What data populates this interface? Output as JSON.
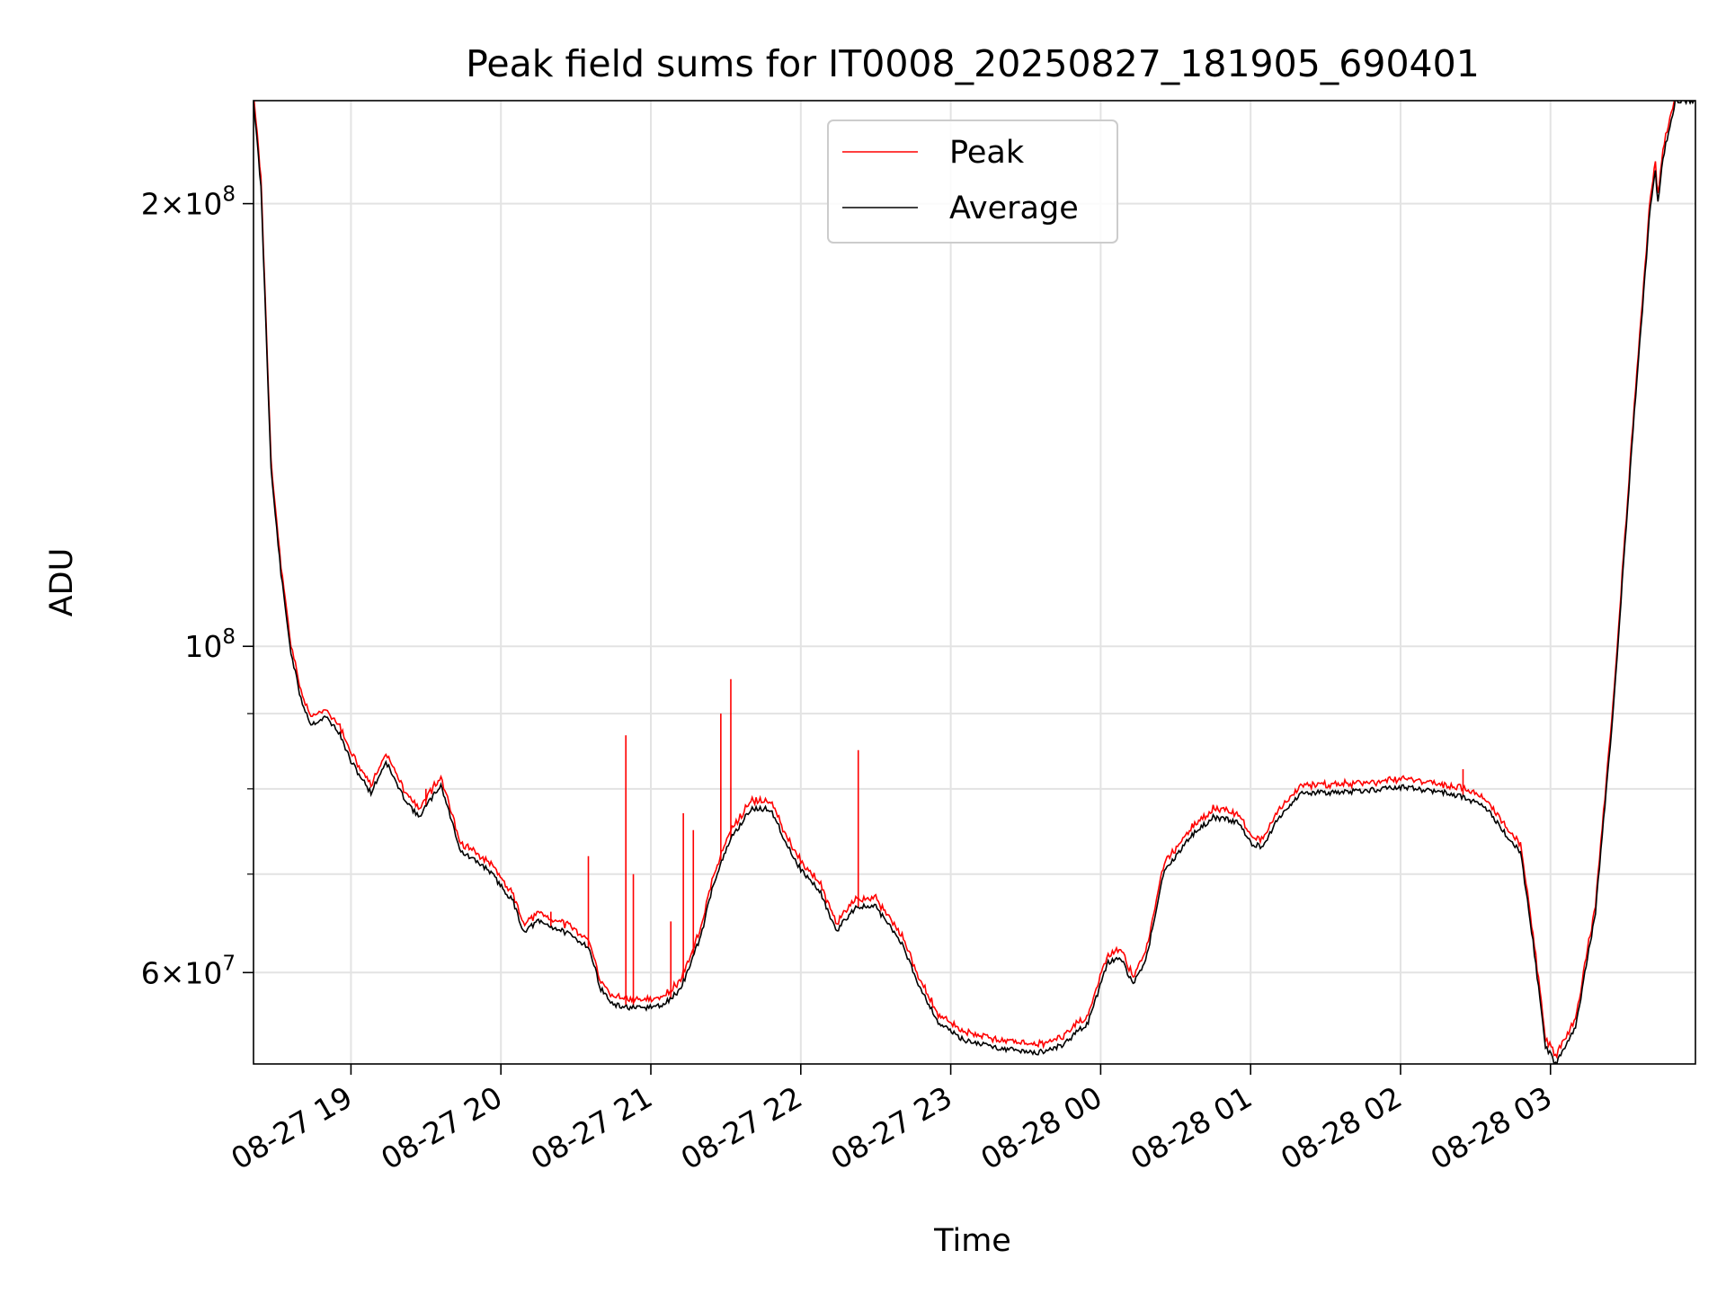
{
  "chart_data": {
    "type": "line",
    "title": "Peak field sums for IT0008_20250827_181905_690401",
    "xlabel": "Time",
    "ylabel": "ADU",
    "y_scale": "log",
    "ylim": [
      52000000,
      235000000
    ],
    "xlim": [
      "2025-08-27 18:21",
      "2025-08-28 03:58"
    ],
    "grid": true,
    "legend_position": "top-center",
    "x_ticks": [
      {
        "value": "2025-08-27 19:00",
        "label": "08-27 19"
      },
      {
        "value": "2025-08-27 20:00",
        "label": "08-27 20"
      },
      {
        "value": "2025-08-27 21:00",
        "label": "08-27 21"
      },
      {
        "value": "2025-08-27 22:00",
        "label": "08-27 22"
      },
      {
        "value": "2025-08-27 23:00",
        "label": "08-27 23"
      },
      {
        "value": "2025-08-28 00:00",
        "label": "08-28 00"
      },
      {
        "value": "2025-08-28 01:00",
        "label": "08-28 01"
      },
      {
        "value": "2025-08-28 02:00",
        "label": "08-28 02"
      },
      {
        "value": "2025-08-28 03:00",
        "label": "08-28 03"
      }
    ],
    "y_ticks": [
      {
        "value": 60000000,
        "base": "6",
        "exp": "7"
      },
      {
        "value": 100000000,
        "base": "",
        "exp": "8"
      },
      {
        "value": 200000000,
        "base": "2",
        "exp": "8"
      }
    ],
    "y_minor_ticks": [
      70000000,
      80000000,
      90000000
    ],
    "series": [
      {
        "name": "Average",
        "color": "#000000",
        "points": [
          [
            "2025-08-27 18:21",
            235000000
          ],
          [
            "2025-08-27 18:24",
            205000000
          ],
          [
            "2025-08-27 18:26",
            165000000
          ],
          [
            "2025-08-27 18:28",
            132000000
          ],
          [
            "2025-08-27 18:32",
            112000000
          ],
          [
            "2025-08-27 18:36",
            99000000
          ],
          [
            "2025-08-27 18:40",
            92000000
          ],
          [
            "2025-08-27 18:44",
            88500000
          ],
          [
            "2025-08-27 18:50",
            89500000
          ],
          [
            "2025-08-27 18:55",
            87500000
          ],
          [
            "2025-08-27 19:00",
            83500000
          ],
          [
            "2025-08-27 19:08",
            79500000
          ],
          [
            "2025-08-27 19:14",
            83500000
          ],
          [
            "2025-08-27 19:20",
            79500000
          ],
          [
            "2025-08-27 19:27",
            76500000
          ],
          [
            "2025-08-27 19:36",
            80500000
          ],
          [
            "2025-08-27 19:44",
            72500000
          ],
          [
            "2025-08-27 19:55",
            70500000
          ],
          [
            "2025-08-27 20:05",
            67000000
          ],
          [
            "2025-08-27 20:09",
            64000000
          ],
          [
            "2025-08-27 20:15",
            65000000
          ],
          [
            "2025-08-27 20:25",
            64000000
          ],
          [
            "2025-08-27 20:35",
            62500000
          ],
          [
            "2025-08-27 20:40",
            58500000
          ],
          [
            "2025-08-27 20:45",
            57000000
          ],
          [
            "2025-08-27 20:55",
            56700000
          ],
          [
            "2025-08-27 21:05",
            57000000
          ],
          [
            "2025-08-27 21:12",
            58500000
          ],
          [
            "2025-08-27 21:20",
            63500000
          ],
          [
            "2025-08-27 21:25",
            69000000
          ],
          [
            "2025-08-27 21:32",
            74000000
          ],
          [
            "2025-08-27 21:40",
            77500000
          ],
          [
            "2025-08-27 21:48",
            77500000
          ],
          [
            "2025-08-27 21:55",
            73000000
          ],
          [
            "2025-08-27 22:00",
            70500000
          ],
          [
            "2025-08-27 22:08",
            68000000
          ],
          [
            "2025-08-27 22:14",
            64000000
          ],
          [
            "2025-08-27 22:22",
            66500000
          ],
          [
            "2025-08-27 22:30",
            66500000
          ],
          [
            "2025-08-27 22:40",
            63000000
          ],
          [
            "2025-08-27 22:47",
            59000000
          ],
          [
            "2025-08-27 22:55",
            55500000
          ],
          [
            "2025-08-27 23:05",
            54000000
          ],
          [
            "2025-08-27 23:20",
            53300000
          ],
          [
            "2025-08-27 23:35",
            52900000
          ],
          [
            "2025-08-27 23:45",
            53600000
          ],
          [
            "2025-08-27 23:55",
            55500000
          ],
          [
            "2025-08-28 00:03",
            61000000
          ],
          [
            "2025-08-28 00:08",
            61300000
          ],
          [
            "2025-08-28 00:13",
            59000000
          ],
          [
            "2025-08-28 00:18",
            61000000
          ],
          [
            "2025-08-28 00:25",
            70000000
          ],
          [
            "2025-08-28 00:35",
            74000000
          ],
          [
            "2025-08-28 00:45",
            76500000
          ],
          [
            "2025-08-28 00:55",
            76000000
          ],
          [
            "2025-08-28 01:00",
            73500000
          ],
          [
            "2025-08-28 01:05",
            73000000
          ],
          [
            "2025-08-28 01:10",
            76000000
          ],
          [
            "2025-08-28 01:20",
            79500000
          ],
          [
            "2025-08-28 01:35",
            79500000
          ],
          [
            "2025-08-28 02:00",
            80200000
          ],
          [
            "2025-08-28 02:15",
            79700000
          ],
          [
            "2025-08-28 02:25",
            79000000
          ],
          [
            "2025-08-28 02:35",
            77500000
          ],
          [
            "2025-08-28 02:42",
            74500000
          ],
          [
            "2025-08-28 02:48",
            72500000
          ],
          [
            "2025-08-28 02:53",
            63000000
          ],
          [
            "2025-08-28 02:58",
            53500000
          ],
          [
            "2025-08-28 03:02",
            52000000
          ],
          [
            "2025-08-28 03:10",
            55000000
          ],
          [
            "2025-08-28 03:18",
            66000000
          ],
          [
            "2025-08-28 03:25",
            90000000
          ],
          [
            "2025-08-28 03:33",
            140000000
          ],
          [
            "2025-08-28 03:40",
            200000000
          ],
          [
            "2025-08-28 03:42",
            210000000
          ],
          [
            "2025-08-28 03:43",
            200000000
          ],
          [
            "2025-08-28 03:45",
            215000000
          ],
          [
            "2025-08-28 03:50",
            235000000
          ],
          [
            "2025-08-28 03:58",
            235000000
          ]
        ]
      },
      {
        "name": "Peak",
        "color": "#ff0000",
        "offset_factor": 1.01,
        "spikes": [
          [
            "2025-08-27 19:30",
            80000000
          ],
          [
            "2025-08-27 20:20",
            66000000
          ],
          [
            "2025-08-27 20:35",
            72000000
          ],
          [
            "2025-08-27 20:41",
            58000000
          ],
          [
            "2025-08-27 20:50",
            87000000
          ],
          [
            "2025-08-27 20:53",
            70000000
          ],
          [
            "2025-08-27 21:08",
            65000000
          ],
          [
            "2025-08-27 21:13",
            77000000
          ],
          [
            "2025-08-27 21:17",
            75000000
          ],
          [
            "2025-08-27 21:28",
            90000000
          ],
          [
            "2025-08-27 21:32",
            95000000
          ],
          [
            "2025-08-27 22:23",
            85000000
          ],
          [
            "2025-08-28 02:25",
            82500000
          ]
        ]
      }
    ]
  }
}
